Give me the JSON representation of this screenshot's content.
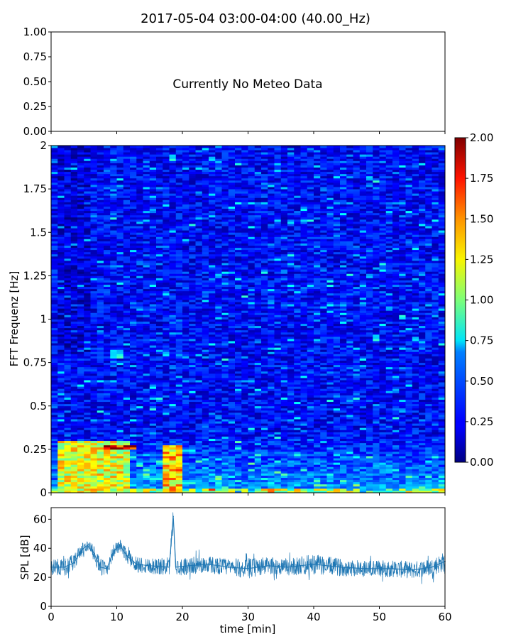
{
  "title": "2017-05-04 03:00-04:00 (40.00_Hz)",
  "meteo": {
    "message": "Currently No Meteo Data",
    "ytick_labels": [
      "1.00",
      "0.75",
      "0.50",
      "0.25",
      "0.00"
    ]
  },
  "chart_data": [
    {
      "type": "text-placeholder",
      "title": "2017-05-04 03:00-04:00 (40.00_Hz)",
      "annotation": "Currently No Meteo Data",
      "ylim": [
        0,
        1
      ],
      "yticks": [
        0,
        0.25,
        0.5,
        0.75,
        1.0
      ]
    },
    {
      "type": "heatmap",
      "ylabel": "FFT Frequenz [Hz]",
      "xlim": [
        0,
        60
      ],
      "ylim": [
        0,
        2
      ],
      "yticks": [
        0,
        0.25,
        0.5,
        0.75,
        1,
        1.25,
        1.5,
        1.75,
        2
      ],
      "ytick_labels": [
        "0",
        "0.25",
        "0.5",
        "0.75",
        "1",
        "1.25",
        "1.5",
        "1.75",
        "2"
      ],
      "colormap": "jet",
      "clim": [
        0,
        2
      ],
      "colorbar_ticks": [
        "0.00",
        "0.25",
        "0.50",
        "0.75",
        "1.00",
        "1.25",
        "1.50",
        "1.75",
        "2.00"
      ],
      "features": [
        {
          "x_min": [
            1,
            12
          ],
          "freq_hz": [
            0.0,
            0.3
          ],
          "level": 1.3
        },
        {
          "x_min": [
            8,
            13
          ],
          "freq_hz": [
            0.25,
            0.28
          ],
          "level": 1.9
        },
        {
          "x_min": [
            17,
            20
          ],
          "freq_hz": [
            0.0,
            0.28
          ],
          "level": 1.45
        },
        {
          "x_min": [
            9,
            11
          ],
          "freq_hz": [
            0.78,
            0.83
          ],
          "level": 0.8
        }
      ]
    },
    {
      "type": "line",
      "xlabel": "time [min]",
      "ylabel": "SPL [dB]",
      "xlim": [
        0,
        60
      ],
      "ylim": [
        0,
        68
      ],
      "xticks": [
        0,
        10,
        20,
        30,
        40,
        50,
        60
      ],
      "yticks": [
        0,
        20,
        40,
        60
      ],
      "color": "#1f77b4",
      "x": [
        0,
        2,
        3.5,
        4.5,
        5.5,
        6.5,
        7.5,
        8.5,
        9.5,
        10.5,
        11.5,
        13,
        15,
        18,
        18.6,
        19,
        21,
        24,
        27,
        30,
        33,
        36,
        40,
        44,
        48,
        52,
        55,
        58,
        60
      ],
      "y": [
        27,
        27,
        30,
        38,
        42,
        37,
        27,
        26,
        38,
        42,
        35,
        29,
        28,
        27,
        62,
        27,
        28,
        29,
        27,
        26,
        28,
        27,
        29,
        27,
        26,
        26,
        25,
        27,
        31
      ],
      "band_half_width": [
        6,
        6,
        6,
        5,
        4,
        5,
        6,
        6,
        5,
        4,
        5,
        6,
        6,
        6,
        6,
        6,
        6,
        6,
        6,
        7,
        6,
        6,
        7,
        6,
        6,
        6,
        6,
        6,
        7
      ]
    }
  ]
}
